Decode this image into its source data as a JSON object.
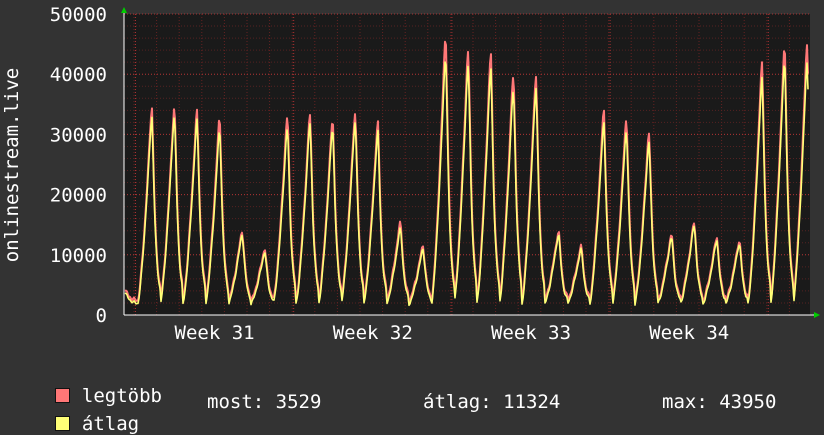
{
  "chart_data": {
    "type": "line",
    "ylabel": "onlinestream.live",
    "yticks": [
      0,
      10000,
      20000,
      30000,
      40000,
      50000
    ],
    "ylim": [
      0,
      50000
    ],
    "xticks": [
      "Week 31",
      "Week 32",
      "Week 33",
      "Week 34"
    ],
    "series": [
      {
        "name": "legtöbb",
        "color": "#ff7777",
        "daily_peaks": [
          34500,
          35000,
          34000,
          33000,
          14000,
          11000,
          33500,
          33500,
          33000,
          34000,
          32000,
          15500,
          11500,
          47000,
          44500,
          43500,
          40500,
          40000,
          14000,
          11500,
          34000,
          33000,
          30500,
          13500,
          15500,
          13000,
          12500,
          42000,
          45000,
          45500
        ]
      },
      {
        "name": "átlag",
        "color": "#ffff77",
        "daily_peaks": [
          33000,
          33500,
          32500,
          31000,
          13500,
          10500,
          31500,
          32000,
          31500,
          32500,
          30500,
          14500,
          11000,
          43500,
          42000,
          41000,
          38000,
          38000,
          13500,
          11000,
          32000,
          31000,
          29000,
          13000,
          15000,
          12500,
          12000,
          39500,
          42500,
          42500
        ]
      }
    ],
    "grid": true
  },
  "legend": {
    "max_label": "legtöbb",
    "avg_label": "átlag",
    "now_text": "most: 3529",
    "avg_text": "átlag: 11324",
    "max_text": "max: 43950"
  }
}
